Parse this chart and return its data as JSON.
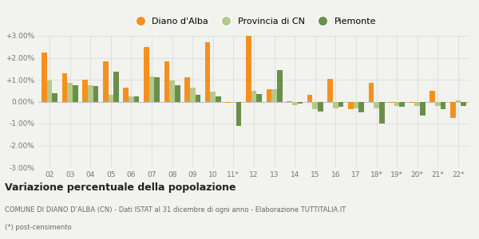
{
  "years": [
    "02",
    "03",
    "04",
    "05",
    "06",
    "07",
    "08",
    "09",
    "10",
    "11*",
    "12",
    "13",
    "14",
    "15",
    "16",
    "17",
    "18*",
    "19*",
    "20*",
    "21*",
    "22*"
  ],
  "diano": [
    2.25,
    1.3,
    1.0,
    1.85,
    0.65,
    2.5,
    1.85,
    1.1,
    2.7,
    -0.05,
    3.0,
    0.55,
    0.02,
    0.3,
    1.05,
    -0.35,
    0.85,
    -0.05,
    -0.05,
    0.5,
    -0.75
  ],
  "provincia": [
    0.95,
    0.85,
    0.75,
    0.3,
    0.25,
    1.15,
    0.95,
    0.65,
    0.45,
    -0.05,
    0.5,
    0.55,
    -0.15,
    -0.35,
    -0.3,
    -0.3,
    -0.3,
    -0.2,
    -0.2,
    -0.2,
    0.05
  ],
  "piemonte": [
    0.4,
    0.75,
    0.7,
    1.35,
    0.25,
    1.1,
    0.75,
    0.3,
    0.25,
    -1.1,
    0.35,
    1.45,
    -0.1,
    -0.45,
    -0.25,
    -0.5,
    -1.0,
    -0.25,
    -0.65,
    -0.35,
    -0.2
  ],
  "color_diano": "#f5901e",
  "color_provincia": "#b5c98a",
  "color_piemonte": "#6a8f4a",
  "title1": "Variazione percentuale della popolazione",
  "subtitle": "COMUNE DI DIANO D’ALBA (CN) - Dati ISTAT al 31 dicembre di ogni anno - Elaborazione TUTTITALIA.IT",
  "footnote": "(*) post-censimento",
  "ylim": [
    -3.0,
    3.0
  ],
  "yticks": [
    -3.0,
    -2.0,
    -1.0,
    0.0,
    1.0,
    2.0,
    3.0
  ],
  "ytick_labels": [
    "-3.00%",
    "-2.00%",
    "-1.00%",
    "0.00%",
    "+1.00%",
    "+2.00%",
    "+3.00%"
  ],
  "bg_color": "#f2f2ee",
  "legend_labels": [
    "Diano d'Alba",
    "Provincia di CN",
    "Piemonte"
  ]
}
